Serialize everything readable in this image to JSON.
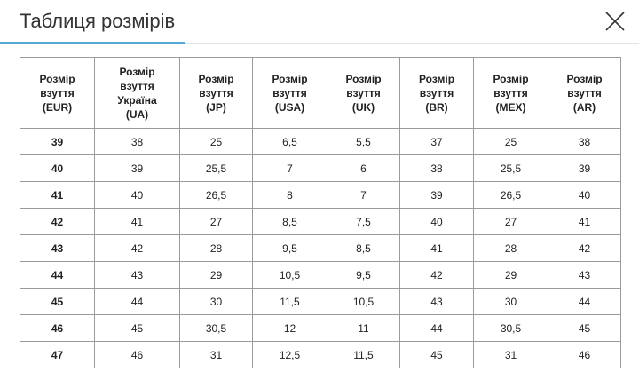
{
  "dialog": {
    "title": "Таблиця розмірів",
    "close_icon": "close-icon"
  },
  "colors": {
    "accent": "#56a9d6",
    "border": "#9a9a9a",
    "divider": "#e2e2e2"
  },
  "table": {
    "headers": [
      "Розмір\nвзуття\n(EUR)",
      "Розмір\nвзуття\nУкраїна\n(UA)",
      "Розмір\nвзуття\n(JP)",
      "Розмір\nвзуття\n(USA)",
      "Розмір\nвзуття\n(UK)",
      "Розмір\nвзуття\n(BR)",
      "Розмір\nвзуття\n(MEX)",
      "Розмір\nвзуття\n(AR)"
    ],
    "rows": [
      [
        "39",
        "38",
        "25",
        "6,5",
        "5,5",
        "37",
        "25",
        "38"
      ],
      [
        "40",
        "39",
        "25,5",
        "7",
        "6",
        "38",
        "25,5",
        "39"
      ],
      [
        "41",
        "40",
        "26,5",
        "8",
        "7",
        "39",
        "26,5",
        "40"
      ],
      [
        "42",
        "41",
        "27",
        "8,5",
        "7,5",
        "40",
        "27",
        "41"
      ],
      [
        "43",
        "42",
        "28",
        "9,5",
        "8,5",
        "41",
        "28",
        "42"
      ],
      [
        "44",
        "43",
        "29",
        "10,5",
        "9,5",
        "42",
        "29",
        "43"
      ],
      [
        "45",
        "44",
        "30",
        "11,5",
        "10,5",
        "43",
        "30",
        "44"
      ],
      [
        "46",
        "45",
        "30,5",
        "12",
        "11",
        "44",
        "30,5",
        "45"
      ],
      [
        "47",
        "46",
        "31",
        "12,5",
        "11,5",
        "45",
        "31",
        "46"
      ]
    ]
  }
}
